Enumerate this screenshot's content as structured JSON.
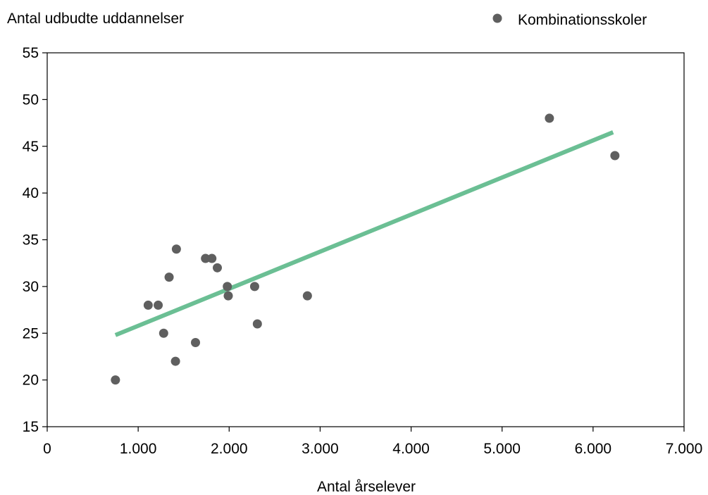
{
  "chart_data": {
    "type": "scatter",
    "title": "",
    "xlabel": "Antal årselever",
    "ylabel": "Antal udbudte uddannelser",
    "xlim": [
      0,
      7000
    ],
    "ylim": [
      15,
      55
    ],
    "x_ticks": [
      0,
      1000,
      2000,
      3000,
      4000,
      5000,
      6000,
      7000
    ],
    "x_tick_labels": [
      "0",
      "1.000",
      "2.000",
      "3.000",
      "4.000",
      "5.000",
      "6.000",
      "7.000"
    ],
    "y_ticks": [
      15,
      20,
      25,
      30,
      35,
      40,
      45,
      50,
      55
    ],
    "y_tick_labels": [
      "15",
      "20",
      "25",
      "30",
      "35",
      "40",
      "45",
      "50",
      "55"
    ],
    "grid": false,
    "legend": "top-right",
    "series": [
      {
        "name": "Kombinationsskoler",
        "color": "#5f5f5f",
        "points": [
          {
            "x": 750,
            "y": 20
          },
          {
            "x": 1110,
            "y": 28
          },
          {
            "x": 1220,
            "y": 28
          },
          {
            "x": 1280,
            "y": 25
          },
          {
            "x": 1340,
            "y": 31
          },
          {
            "x": 1410,
            "y": 22
          },
          {
            "x": 1420,
            "y": 34
          },
          {
            "x": 1630,
            "y": 24
          },
          {
            "x": 1740,
            "y": 33
          },
          {
            "x": 1810,
            "y": 33
          },
          {
            "x": 1870,
            "y": 32
          },
          {
            "x": 1980,
            "y": 30
          },
          {
            "x": 1990,
            "y": 29
          },
          {
            "x": 2280,
            "y": 30
          },
          {
            "x": 2310,
            "y": 26
          },
          {
            "x": 2860,
            "y": 29
          },
          {
            "x": 5520,
            "y": 48
          },
          {
            "x": 6240,
            "y": 44
          }
        ]
      }
    ],
    "trendline": {
      "type": "linear",
      "color": "#6bbf94",
      "start": {
        "x": 750,
        "y": 24.8
      },
      "end": {
        "x": 6220,
        "y": 46.5
      }
    }
  }
}
